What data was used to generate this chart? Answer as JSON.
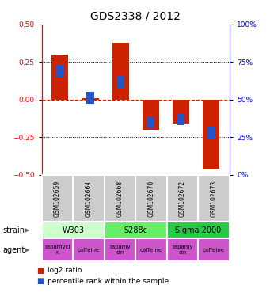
{
  "title": "GDS2338 / 2012",
  "samples": [
    "GSM102659",
    "GSM102664",
    "GSM102668",
    "GSM102670",
    "GSM102672",
    "GSM102673"
  ],
  "log2_ratios": [
    0.3,
    0.01,
    0.38,
    -0.2,
    -0.16,
    -0.46
  ],
  "percentile_ranks_pct": [
    69,
    51,
    62,
    35,
    37,
    28
  ],
  "ylim": [
    -0.5,
    0.5
  ],
  "ylim_right": [
    0,
    100
  ],
  "yticks_left": [
    -0.5,
    -0.25,
    0.0,
    0.25,
    0.5
  ],
  "yticks_right": [
    0,
    25,
    50,
    75,
    100
  ],
  "bar_color": "#cc2200",
  "percentile_color": "#2255cc",
  "zero_line_color": "#cc2200",
  "strain_colors": {
    "W303": "#ccffcc",
    "S288c": "#66ee66",
    "Sigma 2000": "#22cc44"
  },
  "agent_color": "#cc55cc",
  "strain_spans": [
    [
      0,
      2,
      "W303"
    ],
    [
      2,
      4,
      "S288c"
    ],
    [
      4,
      6,
      "Sigma 2000"
    ]
  ],
  "agents": [
    "rapamycin",
    "caffeine",
    "rapamycin",
    "caffeine",
    "rapamycin",
    "caffeine"
  ],
  "agent_text": [
    "rapamyci\nn",
    "caffeine",
    "rapamy\ncin",
    "caffeine",
    "rapamy\ncin",
    "caffeine"
  ],
  "background_color": "#ffffff",
  "sample_box_color": "#cccccc",
  "bar_width": 0.55,
  "blue_marker_size": 0.04,
  "title_fontsize": 10,
  "tick_fontsize": 6.5,
  "sample_fontsize": 5.5,
  "strain_fontsize": 7,
  "agent_fontsize": 5,
  "legend_fontsize": 6.5,
  "label_fontsize": 7
}
